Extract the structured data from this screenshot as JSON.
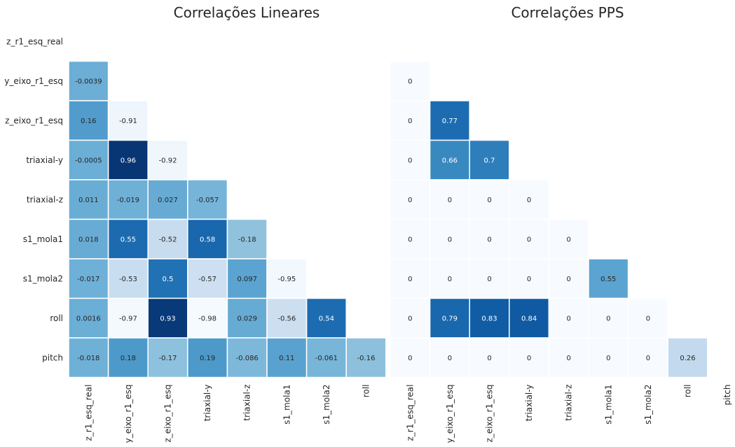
{
  "chart_data": [
    {
      "type": "heatmap",
      "title": "Correlações Lineares",
      "row_labels": [
        "z_r1_esq_real",
        "y_eixo_r1_esq",
        "z_eixo_r1_esq",
        "triaxial-y",
        "triaxial-z",
        "s1_mola1",
        "s1_mola2",
        "roll",
        "pitch"
      ],
      "col_labels": [
        "z_r1_esq_real",
        "y_eixo_r1_esq",
        "z_eixo_r1_esq",
        "triaxial-y",
        "triaxial-z",
        "s1_mola1",
        "s1_mola2",
        "roll"
      ],
      "masked": "upper-triangle-and-diagonal",
      "colormap": "Blues",
      "value_range": [
        -1,
        1
      ],
      "values": [
        [
          null,
          null,
          null,
          null,
          null,
          null,
          null,
          null
        ],
        [
          -0.0039,
          null,
          null,
          null,
          null,
          null,
          null,
          null
        ],
        [
          0.16,
          -0.91,
          null,
          null,
          null,
          null,
          null,
          null
        ],
        [
          -0.0005,
          0.96,
          -0.92,
          null,
          null,
          null,
          null,
          null
        ],
        [
          0.011,
          -0.019,
          0.027,
          -0.057,
          null,
          null,
          null,
          null
        ],
        [
          0.018,
          0.55,
          -0.52,
          0.58,
          -0.18,
          null,
          null,
          null
        ],
        [
          -0.017,
          -0.53,
          0.5,
          -0.57,
          0.097,
          -0.95,
          null,
          null
        ],
        [
          0.0016,
          -0.97,
          0.93,
          -0.98,
          0.029,
          -0.56,
          0.54,
          null
        ],
        [
          -0.018,
          0.18,
          -0.17,
          0.19,
          -0.086,
          0.11,
          -0.061,
          -0.16
        ]
      ]
    },
    {
      "type": "heatmap",
      "title": "Correlações PPS",
      "row_labels": [
        "z_r1_esq_real",
        "y_eixo_r1_esq",
        "z_eixo_r1_esq",
        "triaxial-y",
        "triaxial-z",
        "s1_mola1",
        "s1_mola2",
        "roll",
        "pitch"
      ],
      "col_labels": [
        "z_r1_esq_real",
        "y_eixo_r1_esq",
        "z_eixo_r1_esq",
        "triaxial-y",
        "triaxial-z",
        "s1_mola1",
        "s1_mola2",
        "roll",
        "pitch"
      ],
      "masked": "upper-triangle-and-diagonal",
      "colormap": "Blues",
      "value_range": [
        0,
        1
      ],
      "values": [
        [
          null,
          null,
          null,
          null,
          null,
          null,
          null,
          null,
          null
        ],
        [
          0,
          null,
          null,
          null,
          null,
          null,
          null,
          null,
          null
        ],
        [
          0,
          0.77,
          null,
          null,
          null,
          null,
          null,
          null,
          null
        ],
        [
          0,
          0.66,
          0.7,
          null,
          null,
          null,
          null,
          null,
          null
        ],
        [
          0,
          0,
          0,
          0,
          null,
          null,
          null,
          null,
          null
        ],
        [
          0,
          0,
          0,
          0,
          0,
          null,
          null,
          null,
          null
        ],
        [
          0,
          0,
          0,
          0,
          0,
          0.55,
          null,
          null,
          null
        ],
        [
          0,
          0.79,
          0.83,
          0.84,
          0,
          0,
          0,
          null,
          null
        ],
        [
          0,
          0,
          0,
          0,
          0,
          0,
          0,
          0.26,
          null
        ]
      ]
    }
  ]
}
